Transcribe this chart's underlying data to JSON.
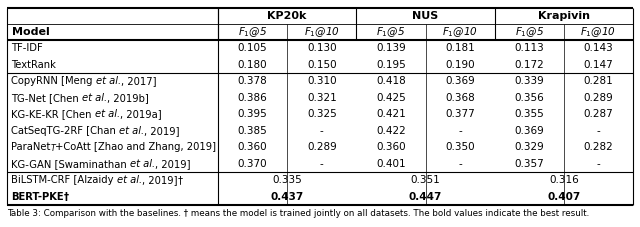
{
  "col_groups": [
    "KP20k",
    "NUS",
    "Krapivin"
  ],
  "sub_labels": [
    "$F_1$@5",
    "$F_1$@10"
  ],
  "model_col": "Model",
  "rows": [
    {
      "group": 0,
      "model_parts": [
        [
          "TF-IDF",
          false
        ]
      ],
      "values": [
        "0.105",
        "0.130",
        "0.139",
        "0.181",
        "0.113",
        "0.143"
      ],
      "bold": false,
      "merged": false
    },
    {
      "group": 0,
      "model_parts": [
        [
          "TextRank",
          false
        ]
      ],
      "values": [
        "0.180",
        "0.150",
        "0.195",
        "0.190",
        "0.172",
        "0.147"
      ],
      "bold": false,
      "merged": false
    },
    {
      "group": 1,
      "model_parts": [
        [
          "CopyRNN [Meng ",
          false
        ],
        [
          "et al.",
          true
        ],
        [
          ", 2017]",
          false
        ]
      ],
      "values": [
        "0.378",
        "0.310",
        "0.418",
        "0.369",
        "0.339",
        "0.281"
      ],
      "bold": false,
      "merged": false
    },
    {
      "group": 1,
      "model_parts": [
        [
          "TG-Net [Chen ",
          false
        ],
        [
          "et al.",
          true
        ],
        [
          ", 2019b]",
          false
        ]
      ],
      "values": [
        "0.386",
        "0.321",
        "0.425",
        "0.368",
        "0.356",
        "0.289"
      ],
      "bold": false,
      "merged": false
    },
    {
      "group": 1,
      "model_parts": [
        [
          "KG-KE-KR [Chen ",
          false
        ],
        [
          "et al.",
          true
        ],
        [
          ", 2019a]",
          false
        ]
      ],
      "values": [
        "0.395",
        "0.325",
        "0.421",
        "0.377",
        "0.355",
        "0.287"
      ],
      "bold": false,
      "merged": false
    },
    {
      "group": 1,
      "model_parts": [
        [
          "CatSeqTG-2RF [Chan ",
          false
        ],
        [
          "et al.",
          true
        ],
        [
          ", 2019]",
          false
        ]
      ],
      "values": [
        "0.385",
        "-",
        "0.422",
        "-",
        "0.369",
        "-"
      ],
      "bold": false,
      "merged": false
    },
    {
      "group": 1,
      "model_parts": [
        [
          "ParaNet",
          false
        ],
        [
          "T",
          true
        ],
        [
          "+CoAtt [Zhao and Zhang, 2019]",
          false
        ]
      ],
      "values": [
        "0.360",
        "0.289",
        "0.360",
        "0.350",
        "0.329",
        "0.282"
      ],
      "bold": false,
      "merged": false
    },
    {
      "group": 1,
      "model_parts": [
        [
          "KG-GAN [Swaminathan ",
          false
        ],
        [
          "et al.",
          true
        ],
        [
          ", 2019]",
          false
        ]
      ],
      "values": [
        "0.370",
        "-",
        "0.401",
        "-",
        "0.357",
        "-"
      ],
      "bold": false,
      "merged": false
    },
    {
      "group": 2,
      "model_parts": [
        [
          "BiLSTM-CRF [Alzaidy ",
          false
        ],
        [
          "et al.",
          true
        ],
        [
          ", 2019]",
          false
        ],
        [
          "†",
          false
        ]
      ],
      "values": [
        "0.335",
        "",
        "0.351",
        "",
        "0.316",
        ""
      ],
      "bold": false,
      "merged": true
    },
    {
      "group": 2,
      "model_parts": [
        [
          "BERT-PKE",
          false
        ],
        [
          "†",
          false
        ]
      ],
      "values": [
        "0.437",
        "",
        "0.447",
        "",
        "0.407",
        ""
      ],
      "bold": true,
      "merged": true
    }
  ],
  "bg_color": "#ffffff",
  "text_color": "#000000"
}
